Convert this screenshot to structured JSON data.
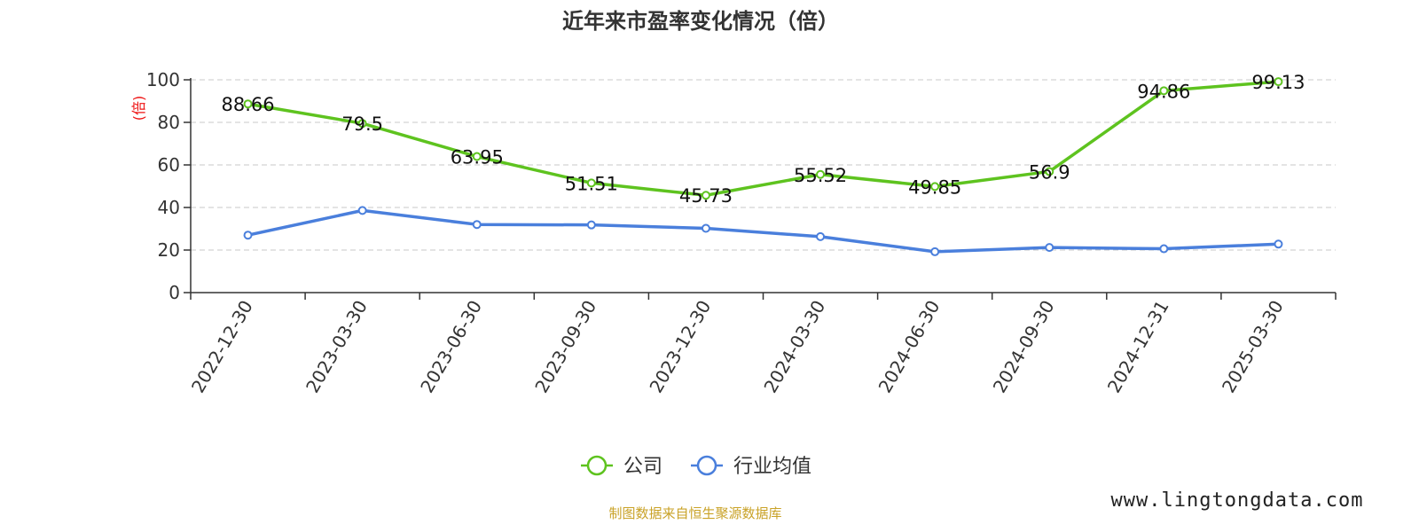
{
  "chart_data": {
    "type": "line",
    "title": "近年来市盈率变化情况（倍）",
    "ylabel": "(倍)",
    "xlabel": "",
    "ylim": [
      0,
      100
    ],
    "yticks": [
      0,
      20,
      40,
      60,
      80,
      100
    ],
    "grid": true,
    "legend_position": "bottom-center",
    "categories": [
      "2022-12-30",
      "2023-03-30",
      "2023-06-30",
      "2023-09-30",
      "2023-12-30",
      "2024-03-30",
      "2024-06-30",
      "2024-09-30",
      "2024-12-31",
      "2025-03-30"
    ],
    "series": [
      {
        "name": "公司",
        "color": "#5ec31f",
        "values": [
          88.66,
          79.5,
          63.95,
          51.51,
          45.73,
          55.52,
          49.85,
          56.9,
          94.86,
          99.13
        ],
        "labels": [
          "88.66",
          "79.5",
          "63.95",
          "51.51",
          "45.73",
          "55.52",
          "49.85",
          "56.9",
          "94.86",
          "99.13"
        ]
      },
      {
        "name": "行业均值",
        "color": "#4a7fdc",
        "values": [
          27.0,
          38.6,
          32.0,
          31.8,
          30.2,
          26.3,
          19.2,
          21.2,
          20.6,
          22.8
        ]
      }
    ]
  },
  "footer": {
    "source": "制图数据来自恒生聚源数据库",
    "watermark": "www.lingtongdata.com"
  }
}
